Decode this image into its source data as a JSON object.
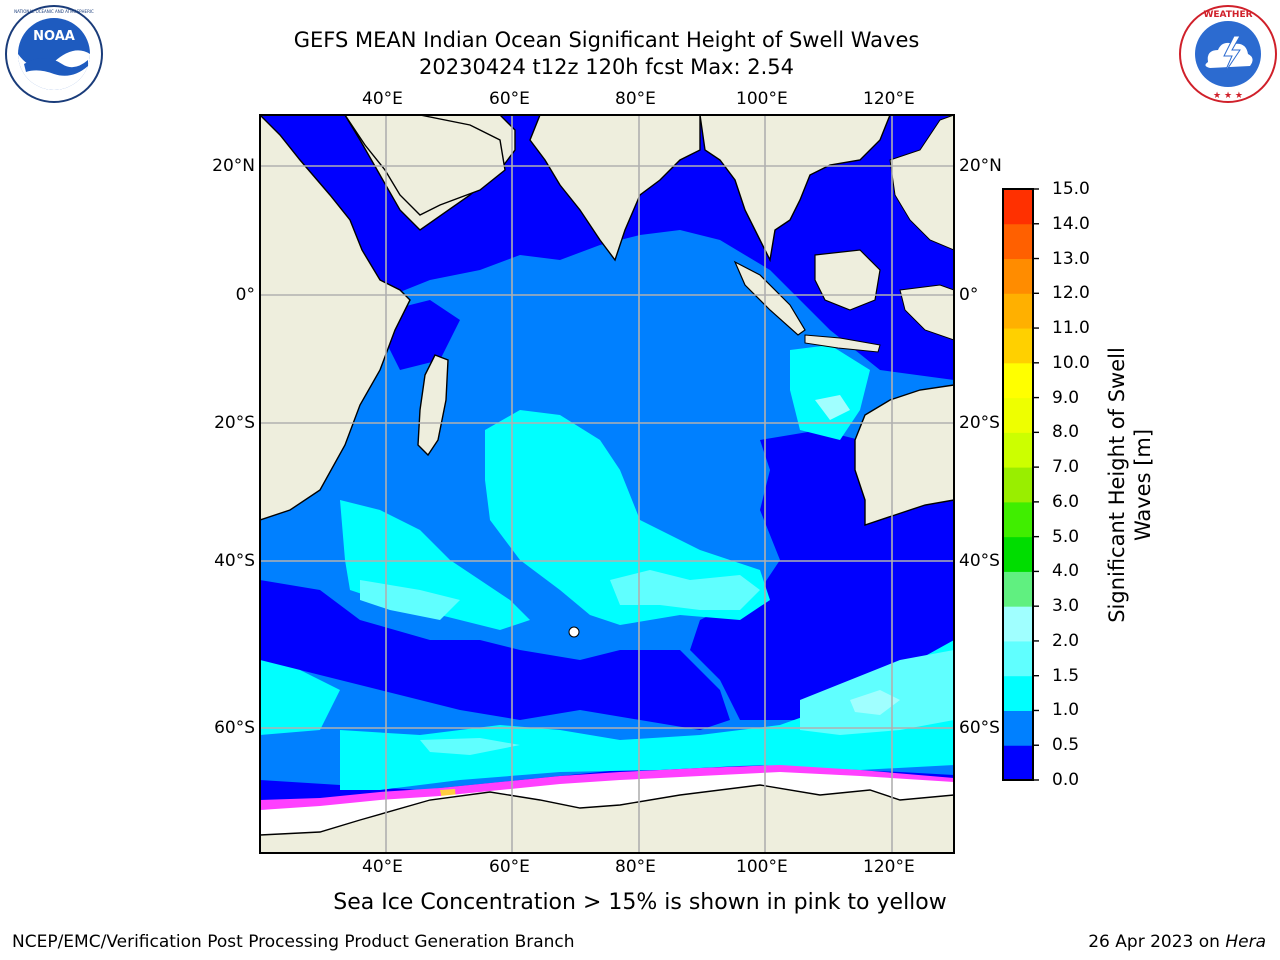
{
  "title": {
    "line1": "GEFS MEAN Indian Ocean Significant Height of Swell Waves",
    "line2": "20230424 t12z 120h fcst   Max: 2.54"
  },
  "logos": {
    "left": {
      "name": "noaa-logo",
      "text": "NOAA",
      "ring_text": "NATIONAL OCEANIC AND ATMOSPHERIC ADMINISTRATION · U.S. DEPARTMENT OF COMMERCE"
    },
    "right": {
      "name": "nws-logo",
      "ring_text": "NATIONAL WEATHER SERVICE"
    }
  },
  "map": {
    "lon_labels": [
      "40°E",
      "60°E",
      "80°E",
      "100°E",
      "120°E"
    ],
    "lat_labels": [
      "20°N",
      "0°",
      "20°S",
      "40°S",
      "60°S"
    ],
    "lon_range": [
      20,
      130
    ],
    "lat_range": [
      -72,
      28
    ],
    "grid": true,
    "colors": {
      "land": "#eeeedd",
      "band_0_0_5": "#0000ff",
      "band_0_5_1_0": "#0080ff",
      "band_1_0_1_5": "#00ffff",
      "band_1_5_2_0": "#60ffff",
      "band_2_0_3_0": "#a0ffff",
      "ice_low": "#ff40ff",
      "ice_high": "#ffcc40"
    }
  },
  "colorbar": {
    "label": "Significant Height of Swell\nWaves [m]",
    "ticks": [
      "0.0",
      "0.5",
      "1.0",
      "1.5",
      "2.0",
      "3.0",
      "4.0",
      "5.0",
      "6.0",
      "7.0",
      "8.0",
      "9.0",
      "10.0",
      "11.0",
      "12.0",
      "13.0",
      "14.0",
      "15.0"
    ],
    "colors": [
      "#0000ff",
      "#0080ff",
      "#00ffff",
      "#60ffff",
      "#a0ffff",
      "#60f080",
      "#00dd00",
      "#40ee00",
      "#99ee00",
      "#ccff00",
      "#eeff00",
      "#ffff00",
      "#ffd000",
      "#ffb000",
      "#ff8c00",
      "#ff6000",
      "#ff3000",
      "#ff0000"
    ]
  },
  "caption": "Sea Ice Concentration > 15% is shown in pink to yellow",
  "footer": {
    "left": "NCEP/EMC/Verification Post Processing Product Generation Branch",
    "right_prefix": "26 Apr 2023 on ",
    "right_host": "Hera"
  }
}
